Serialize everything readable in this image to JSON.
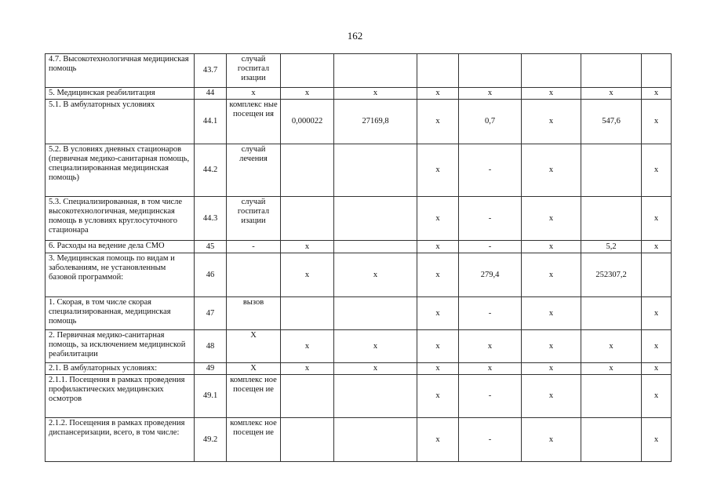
{
  "page_number": "162",
  "table": {
    "rows": [
      [
        "4.7. Высокотехнологичная медицинская помощь",
        "43.7",
        "случай госпитал изации",
        "",
        "",
        "",
        "",
        "",
        "",
        ""
      ],
      [
        "5. Медицинская реабилитация",
        "44",
        "х",
        "х",
        "х",
        "х",
        "х",
        "х",
        "х",
        "х"
      ],
      [
        "5.1. В амбулаторных условиях",
        "44.1",
        "комплекс ные посещен ия",
        "0,000022",
        "27169,8",
        "х",
        "0,7",
        "х",
        "547,6",
        "х"
      ],
      [
        "5.2. В условиях дневных стационаров (первичная медико-санитарная помощь, специализированная медицинская помощь)",
        "44.2",
        "случай лечения",
        "",
        "",
        "х",
        "-",
        "х",
        "",
        "х"
      ],
      [
        "5.3. Специализированная, в том числе высокотехнологичная, медицинская помощь в условиях круглосуточного стационара",
        "44.3",
        "случай госпитал изации",
        "",
        "",
        "х",
        "-",
        "х",
        "",
        "х"
      ],
      [
        "6. Расходы на ведение дела СМО",
        "45",
        "-",
        "х",
        "",
        "х",
        "-",
        "х",
        "5,2",
        "х"
      ],
      [
        "3. Медицинская помощь по видам и заболеваниям, не установленным базовой программой:",
        "46",
        "",
        "х",
        "х",
        "х",
        "279,4",
        "х",
        "252307,2",
        ""
      ],
      [
        "1. Скорая, в том числе скорая специализированная, медицинская помощь",
        "47",
        "вызов",
        "",
        "",
        "х",
        "-",
        "х",
        "",
        "х"
      ],
      [
        "2. Первичная медико-санитарная помощь, за исключением медицинской реабилитации",
        "48",
        "Х",
        "х",
        "х",
        "х",
        "х",
        "х",
        "х",
        "х"
      ],
      [
        "2.1. В амбулаторных условиях:",
        "49",
        "Х",
        "х",
        "х",
        "х",
        "х",
        "х",
        "х",
        "х"
      ],
      [
        "2.1.1. Посещения в рамках проведения профилактических медицинских осмотров",
        "49.1",
        "комплекс ное посещен ие",
        "",
        "",
        "х",
        "-",
        "х",
        "",
        "х"
      ],
      [
        "2.1.2. Посещения в рамках проведения диспансеризации, всего, в том числе:",
        "49.2",
        "комплекс ное посещен ие",
        "",
        "",
        "х",
        "-",
        "х",
        "",
        "х"
      ]
    ]
  }
}
